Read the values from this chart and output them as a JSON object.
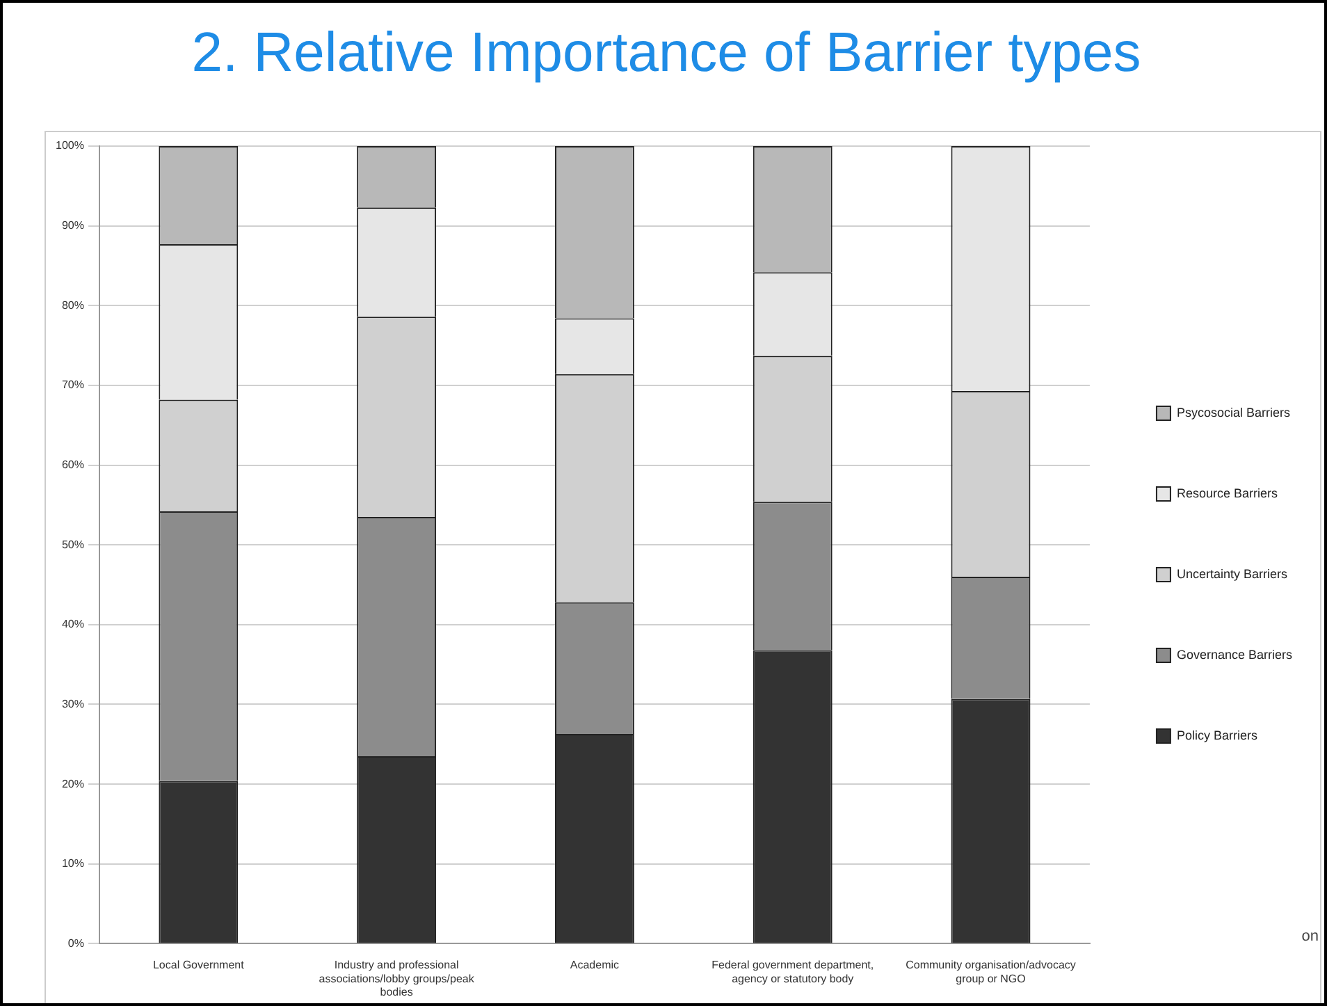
{
  "chart_data": {
    "type": "bar",
    "title": "2. Relative Importance of Barrier types",
    "stacked": true,
    "grid": "y",
    "legend": "right",
    "categories": [
      "Local Government",
      "Industry and professional associations/lobby groups/peak bodies",
      "Academic",
      "Federal government department, agency or statutory body",
      "Community organisation/advocacy group or NGO"
    ],
    "series": [
      {
        "name": "Policy Barriers",
        "color": "#333333",
        "values": [
          20.4,
          23.5,
          26.3,
          36.8,
          30.7
        ]
      },
      {
        "name": "Governance Barriers",
        "color": "#8c8c8c",
        "values": [
          33.8,
          30.0,
          16.5,
          18.6,
          15.3
        ]
      },
      {
        "name": "Uncertainty Barriers",
        "color": "#d0d0d0",
        "values": [
          14.0,
          25.1,
          28.6,
          18.3,
          23.3
        ]
      },
      {
        "name": "Resource Barriers",
        "color": "#e6e6e6",
        "values": [
          19.5,
          13.7,
          7.0,
          10.5,
          30.7
        ]
      },
      {
        "name": "Psycosocial Barriers",
        "color": "#b8b8b8",
        "values": [
          12.3,
          7.7,
          21.6,
          15.8,
          0
        ]
      }
    ],
    "ylim": [
      0,
      100
    ],
    "yticks": [
      {
        "value": 0,
        "label": "0%"
      },
      {
        "value": 10,
        "label": "10%"
      },
      {
        "value": 20,
        "label": "20%"
      },
      {
        "value": 30,
        "label": "30%"
      },
      {
        "value": 40,
        "label": "40%"
      },
      {
        "value": 50,
        "label": "50%"
      },
      {
        "value": 60,
        "label": "60%"
      },
      {
        "value": 70,
        "label": "70%"
      },
      {
        "value": 80,
        "label": "80%"
      },
      {
        "value": 90,
        "label": "90%"
      },
      {
        "value": 100,
        "label": "100%"
      }
    ],
    "annotations": [
      "on"
    ]
  }
}
